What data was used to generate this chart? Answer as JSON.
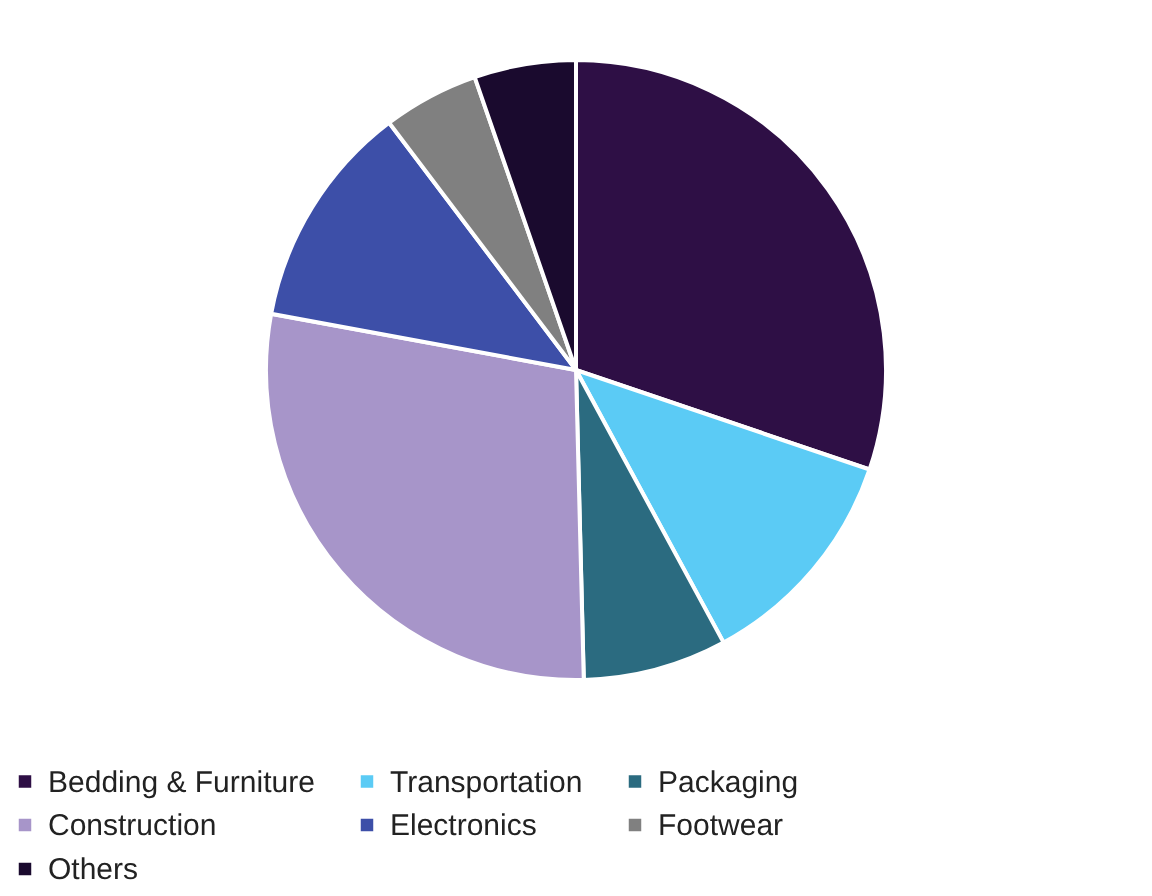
{
  "chart_data": {
    "type": "pie",
    "categories": [
      "Bedding & Furniture",
      "Transportation",
      "Packaging",
      "Construction",
      "Electronics",
      "Footwear",
      "Others"
    ],
    "values": [
      30.2,
      11.9,
      7.5,
      28.3,
      11.8,
      5.0,
      5.3
    ],
    "colors": [
      "#2e0f45",
      "#5bcbf5",
      "#2b6b80",
      "#a795c9",
      "#3d4fa8",
      "#808080",
      "#1a0a2e"
    ],
    "legend": "bottom"
  }
}
